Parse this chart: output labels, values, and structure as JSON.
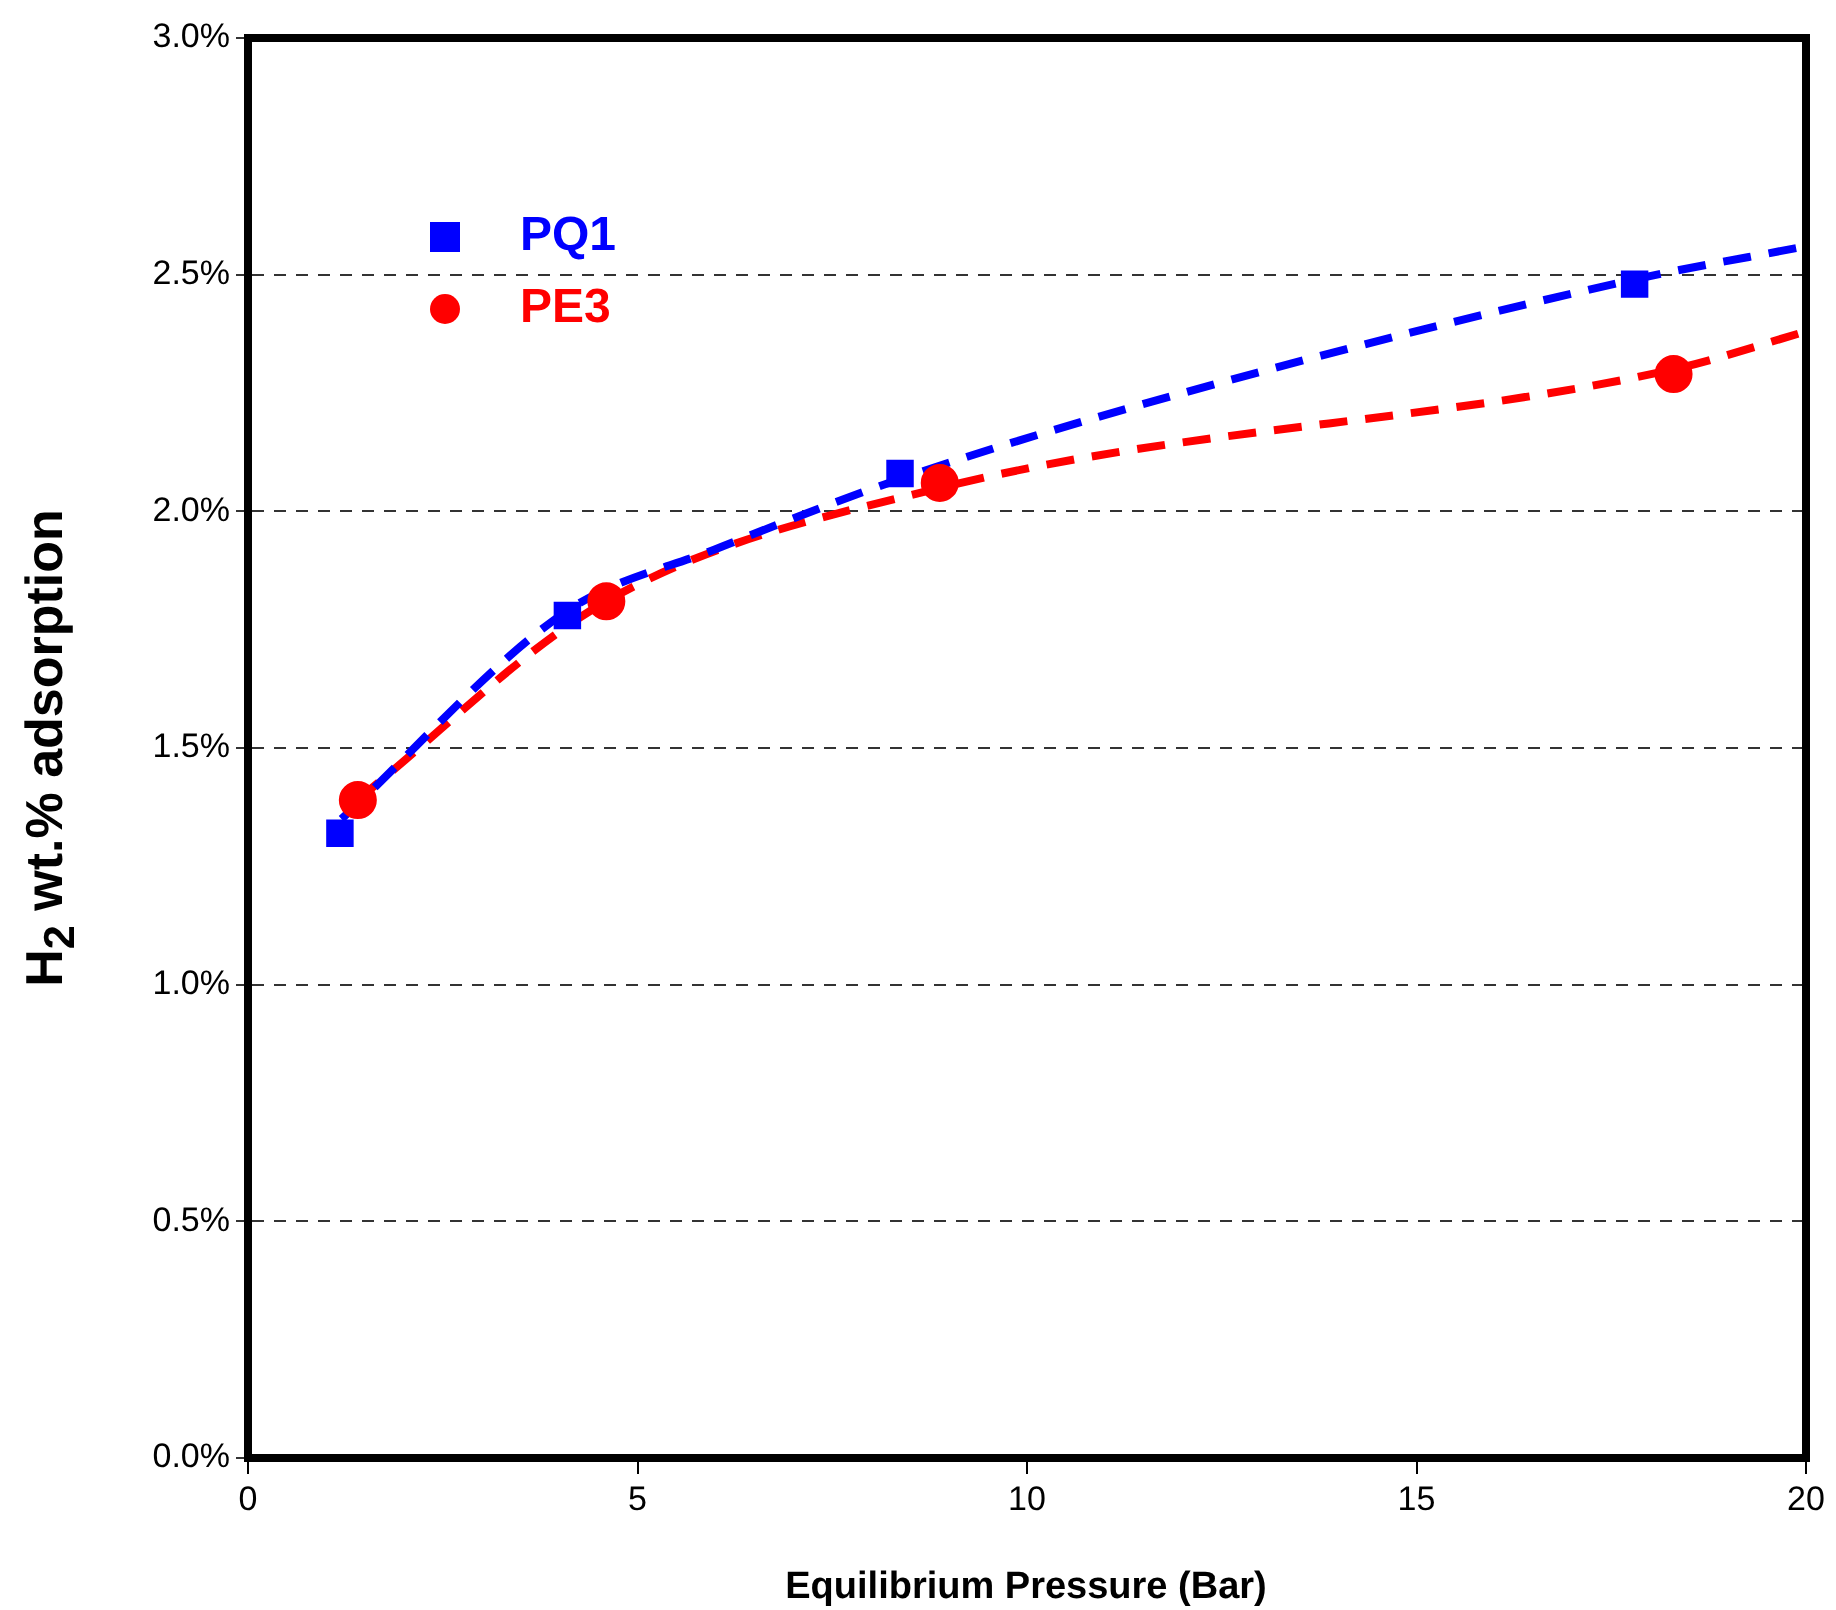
{
  "chart_data": {
    "type": "scatter",
    "xlabel": "Equilibrium Pressure (Bar)",
    "ylabel": "H$_{2}$ wt.% adsorption",
    "xlim": [
      0,
      20
    ],
    "xticks": [
      0,
      5,
      10,
      15,
      20
    ],
    "ylim": [
      0,
      3
    ],
    "yticks": [
      {
        "value": 0,
        "label": "0.0%"
      },
      {
        "value": 0.5,
        "label": "0.5%"
      },
      {
        "value": 1,
        "label": "1.0%"
      },
      {
        "value": 1.5,
        "label": "1.5%"
      },
      {
        "value": 2,
        "label": "2.0%"
      },
      {
        "value": 2.5,
        "label": "2.5%"
      },
      {
        "value": 3,
        "label": "3.0%"
      }
    ],
    "grid": "y",
    "legend": "top left",
    "series": [
      {
        "type": "line",
        "color": "#0000ff",
        "line_style": "dashed",
        "marker": "none",
        "x": [
          1.2,
          4.1,
          6,
          8.4,
          12,
          17.8,
          20
        ],
        "values": [
          1.35,
          1.79,
          1.92,
          2.07,
          2.25,
          2.49,
          2.56
        ]
      },
      {
        "type": "line",
        "color": "#ff0000",
        "line_style": "dashed",
        "marker": "none",
        "x": [
          1.4,
          4.6,
          8.9,
          18.3,
          20
        ],
        "values": [
          1.39,
          1.81,
          2.05,
          2.3,
          2.38
        ]
      },
      {
        "name": "PQ1",
        "color": "#0000ff",
        "marker": "square",
        "x": [
          1.18,
          4.1,
          8.37,
          17.8
        ],
        "values": [
          1.32,
          1.78,
          2.08,
          2.48
        ]
      },
      {
        "name": "PE3",
        "color": "#ff0000",
        "marker": "circle",
        "x": [
          1.41,
          4.6,
          8.88,
          18.3
        ],
        "values": [
          1.39,
          1.81,
          2.06,
          2.29
        ]
      }
    ]
  }
}
